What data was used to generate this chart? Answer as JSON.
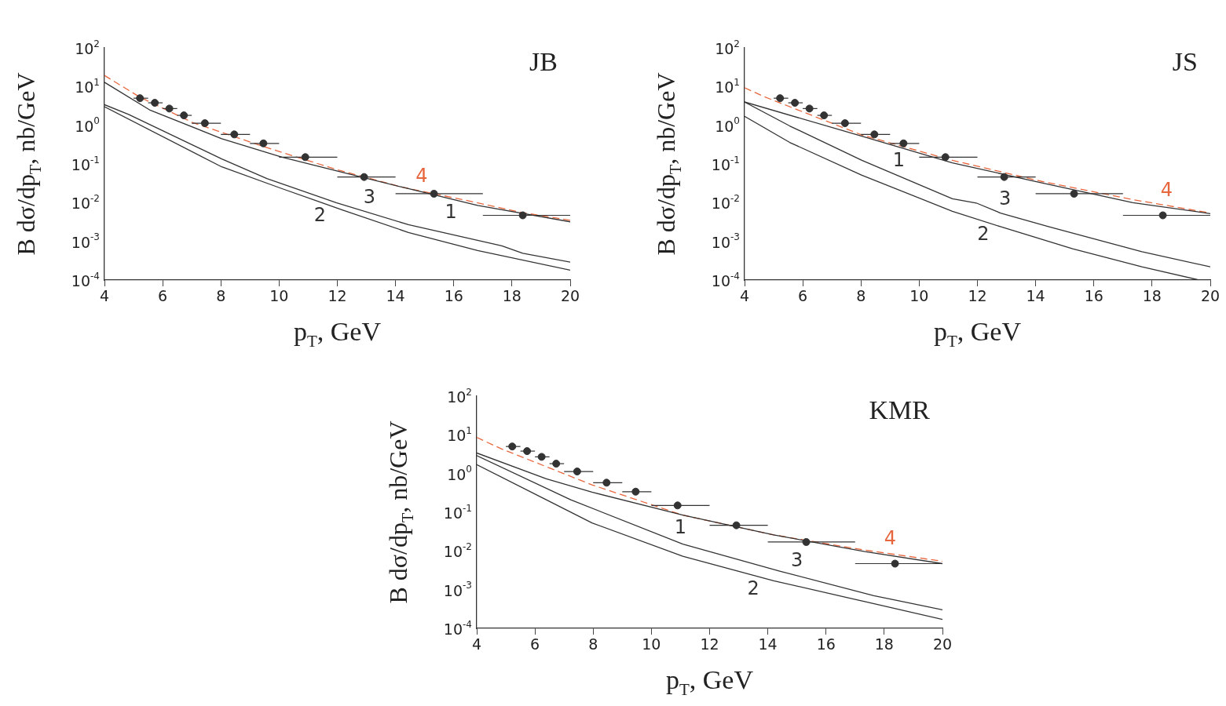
{
  "chart_data": [
    {
      "type": "line",
      "title": "JB",
      "xlabel": "p$_{T}$, GeV",
      "ylabel": "B dσ/dp$_{T}$, nb/GeV",
      "log": "y",
      "xlim": [
        4,
        20
      ],
      "xticks": [
        4,
        6,
        8,
        10,
        12,
        14,
        16,
        18,
        20
      ],
      "ylim": [
        0.0001,
        100
      ],
      "yticks": [
        {
          "value": 0.0001,
          "label": "10$^{-4}$"
        },
        {
          "value": 0.001,
          "label": "10$^{-3}$"
        },
        {
          "value": 0.01,
          "label": "10$^{-2}$"
        },
        {
          "value": 0.1,
          "label": "10$^{-1}$"
        },
        {
          "value": 1,
          "label": "10$^{0}$"
        },
        {
          "value": 10,
          "label": "10$^{1}$"
        },
        {
          "value": 100,
          "label": "10$^{2}$"
        }
      ],
      "annotations": [
        {
          "text": "1",
          "x": 15.9,
          "y": 0.0125
        },
        {
          "text": "2",
          "x": 11.4,
          "y": 0.0104
        },
        {
          "text": "3",
          "x": 13.1,
          "y": 0.0055
        },
        {
          "text": "4",
          "x": 14.9,
          "y": 0.0198
        }
      ],
      "series": [
        {
          "type": "scatter",
          "color": "#333333",
          "marker": "circle",
          "x": [
            5.22,
            5.73,
            6.23,
            6.73,
            7.45,
            8.46,
            9.46,
            10.9,
            12.92,
            15.32,
            18.37
          ],
          "values": [
            5.0,
            3.8,
            2.7,
            1.8,
            1.13,
            0.58,
            0.34,
            0.15,
            0.046,
            0.017,
            0.0047
          ],
          "xerrors": [
            [
              5,
              5.5
            ],
            [
              5.5,
              6
            ],
            [
              6,
              6.5
            ],
            [
              6.5,
              7
            ],
            [
              7,
              8
            ],
            [
              8,
              9
            ],
            [
              9,
              10
            ],
            [
              10,
              12
            ],
            [
              12,
              14
            ],
            [
              14,
              17
            ],
            [
              17,
              20
            ]
          ]
        },
        {
          "type": "line",
          "color": "#333333",
          "marker": "none",
          "line_style": "solid",
          "x": [
            4,
            5.55,
            8.03,
            10.1,
            12.17,
            14.24,
            16.82,
            20
          ],
          "values": [
            12.9,
            2.5,
            0.45,
            0.15,
            0.061,
            0.025,
            0.0085,
            0.0032
          ]
        },
        {
          "type": "line",
          "color": "#333333",
          "marker": "none",
          "line_style": "solid",
          "x": [
            4,
            8.03,
            10.1,
            12.17,
            14.44,
            16.82,
            20
          ],
          "values": [
            3.0,
            0.084,
            0.023,
            0.0065,
            0.0017,
            0.00058,
            0.00018
          ]
        },
        {
          "type": "line",
          "color": "#333333",
          "marker": "none",
          "line_style": "solid",
          "x": [
            4,
            4.83,
            8.03,
            9.58,
            11.96,
            14.44,
            17.65,
            18.37,
            20
          ],
          "values": [
            3.4,
            1.9,
            0.135,
            0.042,
            0.01,
            0.0027,
            0.00077,
            0.00049,
            0.00029
          ]
        },
        {
          "type": "line",
          "color": "#e8663d",
          "marker": "none",
          "line_style": "dashed",
          "x": [
            4,
            5.22,
            7.0,
            9.48,
            11.96,
            14.24,
            16.3,
            18.37,
            20
          ],
          "values": [
            19.4,
            5.3,
            1.2,
            0.28,
            0.072,
            0.025,
            0.012,
            0.0055,
            0.0035
          ]
        }
      ]
    },
    {
      "type": "line",
      "title": "JS",
      "xlabel": "p$_{T}$, GeV",
      "ylabel": "B dσ/dp$_{T}$, nb/GeV",
      "log": "y",
      "xlim": [
        4,
        20
      ],
      "xticks": [
        4,
        6,
        8,
        10,
        12,
        14,
        16,
        18,
        20
      ],
      "ylim": [
        0.0001,
        100
      ],
      "yticks": [
        {
          "value": 0.0001,
          "label": "10$^{-4}$"
        },
        {
          "value": 0.001,
          "label": "10$^{-3}$"
        },
        {
          "value": 0.01,
          "label": "10$^{-2}$"
        },
        {
          "value": 0.1,
          "label": "10$^{-1}$"
        },
        {
          "value": 1,
          "label": "10$^{0}$"
        },
        {
          "value": 10,
          "label": "10$^{1}$"
        },
        {
          "value": 100,
          "label": "10$^{2}$"
        }
      ],
      "annotations": [
        {
          "text": "1",
          "x": 9.3,
          "y": 0.273
        },
        {
          "text": "2",
          "x": 12.2,
          "y": 0.00333
        },
        {
          "text": "3",
          "x": 12.95,
          "y": 0.005
        },
        {
          "text": "4",
          "x": 18.5,
          "y": 0.0085
        }
      ],
      "series": [
        {
          "type": "scatter",
          "color": "#333333",
          "marker": "circle",
          "x": [
            5.22,
            5.73,
            6.23,
            6.73,
            7.45,
            8.46,
            9.46,
            10.9,
            12.92,
            15.32,
            18.37
          ],
          "values": [
            5.0,
            3.8,
            2.7,
            1.8,
            1.13,
            0.58,
            0.34,
            0.15,
            0.046,
            0.017,
            0.0047
          ],
          "xerrors": [
            [
              5,
              5.5
            ],
            [
              5.5,
              6
            ],
            [
              6,
              6.5
            ],
            [
              6.5,
              7
            ],
            [
              7,
              8
            ],
            [
              8,
              9
            ],
            [
              9,
              10
            ],
            [
              10,
              12
            ],
            [
              12,
              14
            ],
            [
              14,
              17
            ],
            [
              17,
              20
            ]
          ]
        },
        {
          "type": "line",
          "color": "#333333",
          "marker": "none",
          "line_style": "solid",
          "x": [
            4,
            8.03,
            11.14,
            14.24,
            17.34,
            20
          ],
          "values": [
            4.0,
            0.52,
            0.107,
            0.032,
            0.01,
            0.0052
          ]
        },
        {
          "type": "line",
          "color": "#333333",
          "marker": "none",
          "line_style": "solid",
          "x": [
            4,
            5.55,
            8.03,
            11.14,
            12.79,
            15.27,
            17.65,
            19.62
          ],
          "values": [
            1.7,
            0.36,
            0.051,
            0.006,
            0.0024,
            0.00064,
            0.00022,
            0.0001
          ]
        },
        {
          "type": "line",
          "color": "#333333",
          "marker": "none",
          "line_style": "solid",
          "x": [
            4,
            5.55,
            8.03,
            11.14,
            11.96,
            12.79,
            14.44,
            17.65,
            20
          ],
          "values": [
            4.0,
            0.96,
            0.124,
            0.0126,
            0.0098,
            0.0054,
            0.0024,
            0.00054,
            0.00022
          ]
        },
        {
          "type": "line",
          "color": "#e8663d",
          "marker": "none",
          "line_style": "dashed",
          "x": [
            4,
            4.72,
            8.03,
            11.14,
            14.24,
            17.34,
            20
          ],
          "values": [
            9.3,
            5.3,
            0.56,
            0.124,
            0.035,
            0.012,
            0.0054
          ]
        }
      ]
    },
    {
      "type": "line",
      "title": "KMR",
      "xlabel": "p$_{T}$, GeV",
      "ylabel": "B dσ/dp$_{T}$, nb/GeV",
      "log": "y",
      "xlim": [
        4,
        20
      ],
      "xticks": [
        4,
        6,
        8,
        10,
        12,
        14,
        16,
        18,
        20
      ],
      "ylim": [
        0.0001,
        100
      ],
      "yticks": [
        {
          "value": 0.0001,
          "label": "10$^{-4}$"
        },
        {
          "value": 0.001,
          "label": "10$^{-3}$"
        },
        {
          "value": 0.01,
          "label": "10$^{-2}$"
        },
        {
          "value": 0.1,
          "label": "10$^{-1}$"
        },
        {
          "value": 1,
          "label": "10$^{0}$"
        },
        {
          "value": 10,
          "label": "10$^{1}$"
        },
        {
          "value": 100,
          "label": "10$^{2}$"
        }
      ],
      "annotations": [
        {
          "text": "1",
          "x": 11.0,
          "y": 0.087
        },
        {
          "text": "2",
          "x": 13.5,
          "y": 0.00236
        },
        {
          "text": "3",
          "x": 15.0,
          "y": 0.0023
        },
        {
          "text": "4",
          "x": 18.2,
          "y": 0.00845
        }
      ],
      "series": [
        {
          "type": "scatter",
          "color": "#333333",
          "marker": "circle",
          "x": [
            5.22,
            5.73,
            6.23,
            6.73,
            7.45,
            8.46,
            9.46,
            10.9,
            12.92,
            15.32,
            18.37
          ],
          "values": [
            5.0,
            3.8,
            2.7,
            1.8,
            1.13,
            0.58,
            0.34,
            0.15,
            0.046,
            0.017,
            0.0047
          ],
          "xerrors": [
            [
              5,
              5.5
            ],
            [
              5.5,
              6
            ],
            [
              6,
              6.5
            ],
            [
              6.5,
              7
            ],
            [
              7,
              8
            ],
            [
              8,
              9
            ],
            [
              9,
              10
            ],
            [
              10,
              12
            ],
            [
              12,
              14
            ],
            [
              14,
              17
            ],
            [
              17,
              20
            ]
          ]
        },
        {
          "type": "line",
          "color": "#333333",
          "marker": "none",
          "line_style": "solid",
          "x": [
            4,
            6.39,
            7.96,
            11.08,
            14.2,
            17.33,
            20
          ],
          "values": [
            3.4,
            0.73,
            0.33,
            0.084,
            0.026,
            0.0096,
            0.0047
          ]
        },
        {
          "type": "line",
          "color": "#333333",
          "marker": "none",
          "line_style": "solid",
          "x": [
            4,
            6.39,
            7.96,
            11.08,
            14.2,
            17.33,
            20
          ],
          "values": [
            1.7,
            0.21,
            0.053,
            0.0073,
            0.0017,
            0.00049,
            0.00017
          ]
        },
        {
          "type": "line",
          "color": "#333333",
          "marker": "none",
          "line_style": "solid",
          "x": [
            4,
            7.23,
            11.08,
            14.41,
            17.64,
            20
          ],
          "values": [
            2.9,
            0.21,
            0.015,
            0.003,
            0.0007,
            0.0003
          ]
        },
        {
          "type": "line",
          "color": "#e8663d",
          "marker": "none",
          "line_style": "dashed",
          "x": [
            4,
            4.83,
            7.96,
            11.08,
            14.2,
            17.33,
            20
          ],
          "values": [
            8.6,
            4.4,
            0.51,
            0.084,
            0.026,
            0.0105,
            0.0054
          ]
        }
      ]
    }
  ]
}
